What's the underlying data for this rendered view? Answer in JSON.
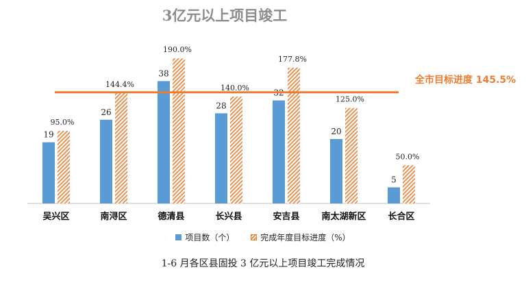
{
  "chart_data": {
    "type": "bar",
    "title": "3亿元以上项目竣工",
    "categories": [
      "吴兴区",
      "南浔区",
      "德清县",
      "长兴县",
      "安吉县",
      "南太湖新区",
      "长合区"
    ],
    "series": [
      {
        "name": "项目数（个）",
        "values": [
          19,
          26,
          38,
          28,
          32,
          20,
          5
        ],
        "labels": [
          "19",
          "26",
          "38",
          "28",
          "32",
          "20",
          "5"
        ],
        "color": "#5b9bd5"
      },
      {
        "name": "完成年度目标进度（%）",
        "values": [
          95.0,
          144.4,
          190.0,
          140.0,
          177.8,
          125.0,
          50.0
        ],
        "labels": [
          "95.0%",
          "144.4%",
          "190.0%",
          "140.0%",
          "177.8%",
          "125.0%",
          "50.0%"
        ],
        "color": "#ed7d31",
        "pattern": "diagonal-hatch"
      }
    ],
    "target_line": {
      "label": "全市目标进度 145.5%",
      "value": 145.5,
      "color": "#ed7d31"
    },
    "xlabel": "",
    "ylabel": "",
    "ylim_count": [
      0,
      48
    ],
    "ylim_percent": [
      0,
      200
    ],
    "grid": false,
    "legend": "bottom"
  },
  "caption": "1-6 月各区县固投 3 亿元以上项目竣工完成情况"
}
